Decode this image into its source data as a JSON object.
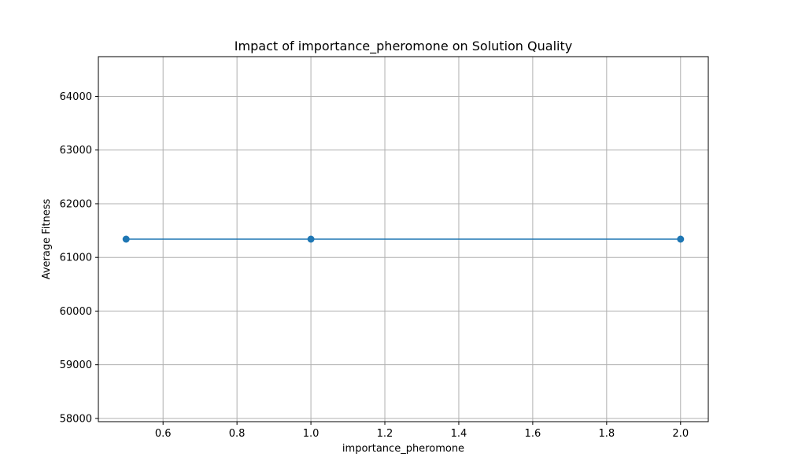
{
  "chart_data": {
    "type": "line",
    "title": "Impact of importance_pheromone on Solution Quality",
    "xlabel": "importance_pheromone",
    "ylabel": "Average Fitness",
    "x": [
      0.5,
      1.0,
      2.0
    ],
    "series": [
      {
        "values": [
          61340,
          61340,
          61340
        ],
        "color": "#1f77b4",
        "marker": "circle"
      }
    ],
    "xlim": [
      0.425,
      2.075
    ],
    "ylim": [
      57940,
      64740
    ],
    "xticks": [
      0.6,
      0.8,
      1.0,
      1.2,
      1.4,
      1.6,
      1.8,
      2.0
    ],
    "xtick_labels": [
      "0.6",
      "0.8",
      "1.0",
      "1.2",
      "1.4",
      "1.6",
      "1.8",
      "2.0"
    ],
    "yticks": [
      58000,
      59000,
      60000,
      61000,
      62000,
      63000,
      64000
    ],
    "ytick_labels": [
      "58000",
      "59000",
      "60000",
      "61000",
      "62000",
      "63000",
      "64000"
    ],
    "grid": true,
    "grid_color": "#b0b0b0",
    "axis_color": "#000000"
  }
}
